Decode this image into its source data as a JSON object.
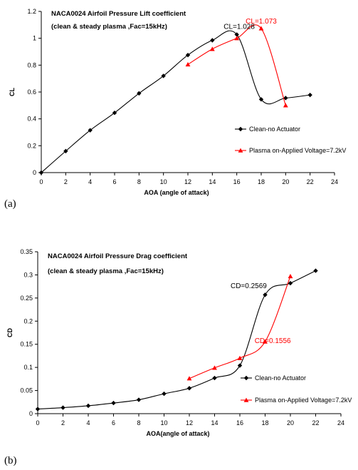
{
  "chart_data": [
    {
      "type": "line",
      "panel_label": "(a)",
      "title": "NACA0024 Airfoil Pressure Lift coefficient",
      "subtitle": "(clean & steady plasma ,Fac=15kHz)",
      "xlabel": "AOA (angle of attack)",
      "ylabel": "CL",
      "xlim": [
        0,
        24
      ],
      "ylim": [
        0,
        1.2
      ],
      "xticks": [
        0,
        2,
        4,
        6,
        8,
        10,
        12,
        14,
        16,
        18,
        20,
        22,
        24
      ],
      "yticks": [
        "0",
        "0.2",
        "0.4",
        "0.6",
        "0.8",
        "1",
        "1.2"
      ],
      "grid": false,
      "legend_position": "right",
      "series": [
        {
          "name": "Clean-no Actuator",
          "color": "#000000",
          "marker": "diamond",
          "x": [
            0,
            2,
            4,
            6,
            8,
            10,
            12,
            14,
            16,
            18,
            20,
            22
          ],
          "y": [
            0,
            0.16,
            0.315,
            0.445,
            0.59,
            0.72,
            0.875,
            0.985,
            1.028,
            0.545,
            0.555,
            0.578
          ]
        },
        {
          "name": "Plasma on-Applied Voltage=7.2kV",
          "color": "#ff0000",
          "marker": "triangle",
          "x": [
            12,
            14,
            16,
            18,
            20
          ],
          "y": [
            0.805,
            0.92,
            1.0,
            1.073,
            0.5
          ]
        }
      ],
      "annotations": [
        {
          "text": "CL=1.028",
          "color": "#000000",
          "x": 16.2,
          "y": 1.07
        },
        {
          "text": "CL=1.073",
          "color": "#ff0000",
          "x": 18.0,
          "y": 1.11
        }
      ]
    },
    {
      "type": "line",
      "panel_label": "(b)",
      "title": "NACA0024 Airfoil Pressure Drag coefficient",
      "subtitle": "(clean & steady plasma ,Fac=15kHz)",
      "xlabel": "AOA(angle of attack)",
      "ylabel": "CD",
      "xlim": [
        0,
        24
      ],
      "ylim": [
        0,
        0.35
      ],
      "xticks": [
        0,
        2,
        4,
        6,
        8,
        10,
        12,
        14,
        16,
        18,
        20,
        22,
        24
      ],
      "yticks": [
        "0",
        "0.05",
        "0.1",
        "0.15",
        "0.2",
        "0.25",
        "0.3",
        "0.35"
      ],
      "grid": false,
      "legend_position": "right",
      "series": [
        {
          "name": "Clean-no Actuator",
          "color": "#000000",
          "marker": "diamond",
          "x": [
            0,
            2,
            4,
            6,
            8,
            10,
            12,
            14,
            16,
            18,
            20,
            22
          ],
          "y": [
            0.01,
            0.013,
            0.017,
            0.023,
            0.03,
            0.043,
            0.055,
            0.077,
            0.104,
            0.2569,
            0.282,
            0.309
          ]
        },
        {
          "name": "Plasma on-Applied Voltage=7.2kV",
          "color": "#ff0000",
          "marker": "triangle",
          "x": [
            12,
            14,
            16,
            18,
            20
          ],
          "y": [
            0.076,
            0.099,
            0.12,
            0.1556,
            0.297
          ]
        }
      ],
      "annotations": [
        {
          "text": "CD=0.2569",
          "color": "#000000",
          "x": 16.7,
          "y": 0.271
        },
        {
          "text": "CD=0.1556",
          "color": "#ff0000",
          "x": 18.6,
          "y": 0.153
        }
      ]
    }
  ]
}
